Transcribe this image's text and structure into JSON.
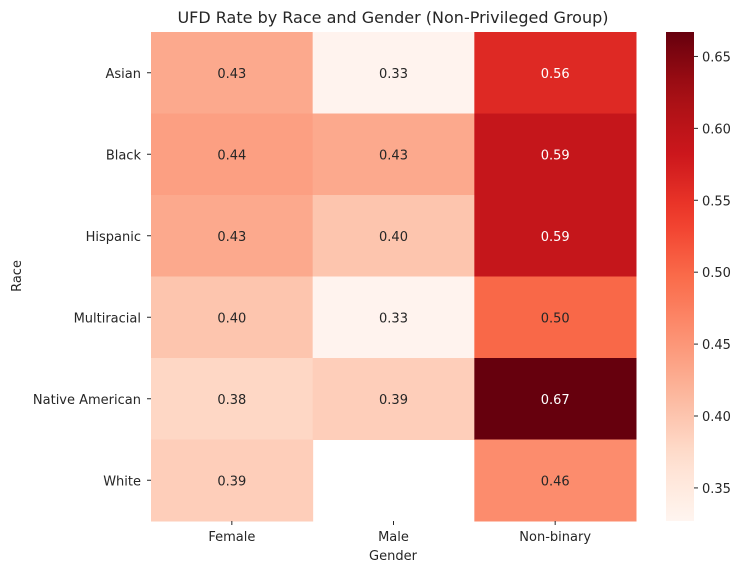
{
  "chart_data": {
    "type": "heatmap",
    "title": "UFD Rate by Race and Gender (Non-Privileged Group)",
    "xlabel": "Gender",
    "ylabel": "Race",
    "x_categories": [
      "Female",
      "Male",
      "Non-binary"
    ],
    "y_categories": [
      "Asian",
      "Black",
      "Hispanic",
      "Multiracial",
      "Native American",
      "White"
    ],
    "values": [
      [
        0.43,
        0.33,
        0.56
      ],
      [
        0.44,
        0.43,
        0.59
      ],
      [
        0.43,
        0.4,
        0.59
      ],
      [
        0.4,
        0.33,
        0.5
      ],
      [
        0.38,
        0.39,
        0.67
      ],
      [
        0.39,
        null,
        0.46
      ]
    ],
    "value_labels": [
      [
        "0.43",
        "0.33",
        "0.56"
      ],
      [
        "0.44",
        "0.43",
        "0.59"
      ],
      [
        "0.43",
        "0.40",
        "0.59"
      ],
      [
        "0.40",
        "0.33",
        "0.50"
      ],
      [
        "0.38",
        "0.39",
        "0.67"
      ],
      [
        "0.39",
        "",
        "0.46"
      ]
    ],
    "colormap": "Reds",
    "color_range": [
      0.327,
      0.667
    ],
    "colorbar_ticks": [
      0.35,
      0.4,
      0.45,
      0.5,
      0.55,
      0.6,
      0.65
    ],
    "colorbar_tick_labels": [
      "0.35",
      "0.40",
      "0.45",
      "0.50",
      "0.55",
      "0.60",
      "0.65"
    ],
    "grid": false,
    "colorbar_position": "right"
  }
}
